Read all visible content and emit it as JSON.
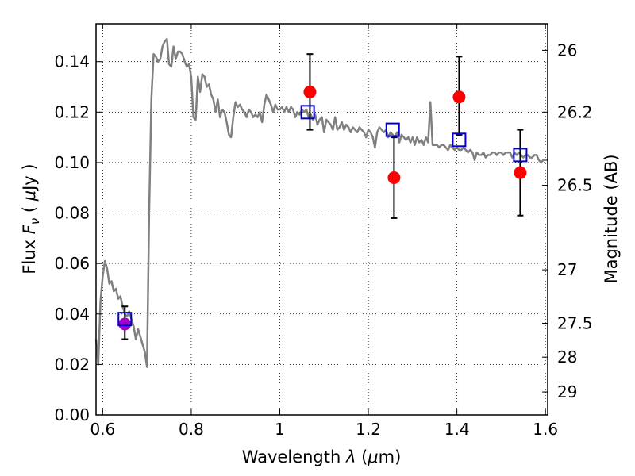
{
  "chart_data": {
    "type": "scatter",
    "xlabel_prefix": "Wavelength  ",
    "xlabel_symbol": "λ",
    "xlabel_open": " (",
    "xlabel_unit": "μ",
    "xlabel_close": "m)",
    "ylabel_prefix": "Flux  ",
    "ylabel_symbol": "F",
    "ylabel_sub": "ν",
    "ylabel_open": "  ( ",
    "ylabel_unit": "μ",
    "ylabel_close": "Jy )",
    "y2label": "Magnitude (AB)",
    "xlim": [
      0.585,
      1.605
    ],
    "ylim": [
      0.0,
      0.155
    ],
    "grid": true,
    "x_ticks": [
      0.6,
      0.8,
      1.0,
      1.2,
      1.4,
      1.6
    ],
    "x_tick_labels": [
      "0.6",
      "0.8",
      "1",
      "1.2",
      "1.4",
      "1.6"
    ],
    "y_ticks": [
      0.0,
      0.02,
      0.04,
      0.06,
      0.08,
      0.1,
      0.12,
      0.14
    ],
    "y_tick_labels": [
      "0.00",
      "0.02",
      "0.04",
      "0.06",
      "0.08",
      "0.10",
      "0.12",
      "0.14"
    ],
    "y2_ticks": [
      {
        "label": "26",
        "flux": 0.1445
      },
      {
        "label": "26.2",
        "flux": 0.12
      },
      {
        "label": "26.5",
        "flux": 0.091
      },
      {
        "label": "27",
        "flux": 0.0575
      },
      {
        "label": "27.5",
        "flux": 0.0363
      },
      {
        "label": "28",
        "flux": 0.0229
      },
      {
        "label": "29",
        "flux": 0.0091
      }
    ],
    "series": [
      {
        "kind": "line",
        "color": "#808080",
        "points": [
          [
            0.585,
            0.03
          ],
          [
            0.59,
            0.02
          ],
          [
            0.595,
            0.045
          ],
          [
            0.6,
            0.055
          ],
          [
            0.605,
            0.061
          ],
          [
            0.61,
            0.058
          ],
          [
            0.615,
            0.052
          ],
          [
            0.62,
            0.053
          ],
          [
            0.625,
            0.049
          ],
          [
            0.63,
            0.05
          ],
          [
            0.635,
            0.046
          ],
          [
            0.64,
            0.047
          ],
          [
            0.645,
            0.043
          ],
          [
            0.65,
            0.04
          ],
          [
            0.655,
            0.039
          ],
          [
            0.66,
            0.041
          ],
          [
            0.665,
            0.038
          ],
          [
            0.67,
            0.035
          ],
          [
            0.675,
            0.03
          ],
          [
            0.68,
            0.034
          ],
          [
            0.685,
            0.031
          ],
          [
            0.69,
            0.028
          ],
          [
            0.695,
            0.025
          ],
          [
            0.7,
            0.019
          ],
          [
            0.705,
            0.08
          ],
          [
            0.71,
            0.125
          ],
          [
            0.715,
            0.143
          ],
          [
            0.72,
            0.142
          ],
          [
            0.725,
            0.14
          ],
          [
            0.73,
            0.141
          ],
          [
            0.735,
            0.146
          ],
          [
            0.74,
            0.148
          ],
          [
            0.745,
            0.149
          ],
          [
            0.75,
            0.139
          ],
          [
            0.755,
            0.138
          ],
          [
            0.76,
            0.146
          ],
          [
            0.765,
            0.141
          ],
          [
            0.77,
            0.144
          ],
          [
            0.775,
            0.144
          ],
          [
            0.78,
            0.143
          ],
          [
            0.785,
            0.14
          ],
          [
            0.79,
            0.138
          ],
          [
            0.795,
            0.139
          ],
          [
            0.8,
            0.134
          ],
          [
            0.805,
            0.118
          ],
          [
            0.81,
            0.117
          ],
          [
            0.815,
            0.134
          ],
          [
            0.82,
            0.128
          ],
          [
            0.825,
            0.135
          ],
          [
            0.83,
            0.134
          ],
          [
            0.835,
            0.13
          ],
          [
            0.84,
            0.131
          ],
          [
            0.845,
            0.127
          ],
          [
            0.85,
            0.125
          ],
          [
            0.855,
            0.12
          ],
          [
            0.86,
            0.125
          ],
          [
            0.865,
            0.118
          ],
          [
            0.87,
            0.121
          ],
          [
            0.875,
            0.12
          ],
          [
            0.88,
            0.116
          ],
          [
            0.885,
            0.111
          ],
          [
            0.89,
            0.11
          ],
          [
            0.895,
            0.118
          ],
          [
            0.9,
            0.124
          ],
          [
            0.905,
            0.122
          ],
          [
            0.91,
            0.123
          ],
          [
            0.915,
            0.121
          ],
          [
            0.92,
            0.12
          ],
          [
            0.925,
            0.118
          ],
          [
            0.93,
            0.121
          ],
          [
            0.935,
            0.12
          ],
          [
            0.94,
            0.118
          ],
          [
            0.945,
            0.119
          ],
          [
            0.95,
            0.118
          ],
          [
            0.955,
            0.12
          ],
          [
            0.96,
            0.116
          ],
          [
            0.965,
            0.123
          ],
          [
            0.97,
            0.127
          ],
          [
            0.975,
            0.125
          ],
          [
            0.98,
            0.123
          ],
          [
            0.985,
            0.12
          ],
          [
            0.99,
            0.123
          ],
          [
            0.995,
            0.121
          ],
          [
            1.0,
            0.121
          ],
          [
            1.005,
            0.122
          ],
          [
            1.01,
            0.12
          ],
          [
            1.015,
            0.122
          ],
          [
            1.02,
            0.12
          ],
          [
            1.025,
            0.122
          ],
          [
            1.03,
            0.121
          ],
          [
            1.035,
            0.118
          ],
          [
            1.04,
            0.12
          ],
          [
            1.045,
            0.119
          ],
          [
            1.05,
            0.121
          ],
          [
            1.055,
            0.12
          ],
          [
            1.06,
            0.121
          ],
          [
            1.065,
            0.118
          ],
          [
            1.07,
            0.119
          ],
          [
            1.075,
            0.117
          ],
          [
            1.08,
            0.119
          ],
          [
            1.085,
            0.115
          ],
          [
            1.09,
            0.117
          ],
          [
            1.095,
            0.118
          ],
          [
            1.1,
            0.112
          ],
          [
            1.105,
            0.117
          ],
          [
            1.11,
            0.116
          ],
          [
            1.115,
            0.115
          ],
          [
            1.12,
            0.113
          ],
          [
            1.125,
            0.118
          ],
          [
            1.13,
            0.113
          ],
          [
            1.135,
            0.114
          ],
          [
            1.14,
            0.116
          ],
          [
            1.145,
            0.113
          ],
          [
            1.15,
            0.115
          ],
          [
            1.155,
            0.114
          ],
          [
            1.16,
            0.112
          ],
          [
            1.165,
            0.114
          ],
          [
            1.17,
            0.113
          ],
          [
            1.175,
            0.112
          ],
          [
            1.18,
            0.114
          ],
          [
            1.185,
            0.113
          ],
          [
            1.19,
            0.112
          ],
          [
            1.195,
            0.11
          ],
          [
            1.2,
            0.113
          ],
          [
            1.205,
            0.112
          ],
          [
            1.21,
            0.11
          ],
          [
            1.215,
            0.106
          ],
          [
            1.22,
            0.112
          ],
          [
            1.225,
            0.114
          ],
          [
            1.23,
            0.113
          ],
          [
            1.235,
            0.112
          ],
          [
            1.24,
            0.113
          ],
          [
            1.245,
            0.11
          ],
          [
            1.25,
            0.112
          ],
          [
            1.255,
            0.111
          ],
          [
            1.26,
            0.11
          ],
          [
            1.265,
            0.112
          ],
          [
            1.27,
            0.108
          ],
          [
            1.275,
            0.111
          ],
          [
            1.28,
            0.11
          ],
          [
            1.285,
            0.109
          ],
          [
            1.29,
            0.11
          ],
          [
            1.295,
            0.108
          ],
          [
            1.3,
            0.11
          ],
          [
            1.305,
            0.107
          ],
          [
            1.31,
            0.11
          ],
          [
            1.315,
            0.108
          ],
          [
            1.32,
            0.109
          ],
          [
            1.325,
            0.107
          ],
          [
            1.33,
            0.11
          ],
          [
            1.335,
            0.108
          ],
          [
            1.34,
            0.124
          ],
          [
            1.345,
            0.107
          ],
          [
            1.35,
            0.107
          ],
          [
            1.355,
            0.107
          ],
          [
            1.36,
            0.106
          ],
          [
            1.365,
            0.107
          ],
          [
            1.37,
            0.107
          ],
          [
            1.375,
            0.106
          ],
          [
            1.38,
            0.105
          ],
          [
            1.385,
            0.107
          ],
          [
            1.39,
            0.106
          ],
          [
            1.395,
            0.105
          ],
          [
            1.4,
            0.106
          ],
          [
            1.405,
            0.105
          ],
          [
            1.41,
            0.105
          ],
          [
            1.415,
            0.106
          ],
          [
            1.42,
            0.105
          ],
          [
            1.425,
            0.104
          ],
          [
            1.43,
            0.105
          ],
          [
            1.435,
            0.104
          ],
          [
            1.44,
            0.101
          ],
          [
            1.445,
            0.104
          ],
          [
            1.45,
            0.103
          ],
          [
            1.455,
            0.103
          ],
          [
            1.46,
            0.104
          ],
          [
            1.465,
            0.102
          ],
          [
            1.47,
            0.103
          ],
          [
            1.475,
            0.103
          ],
          [
            1.48,
            0.104
          ],
          [
            1.485,
            0.104
          ],
          [
            1.49,
            0.103
          ],
          [
            1.495,
            0.104
          ],
          [
            1.5,
            0.104
          ],
          [
            1.505,
            0.103
          ],
          [
            1.51,
            0.104
          ],
          [
            1.515,
            0.104
          ],
          [
            1.52,
            0.104
          ],
          [
            1.525,
            0.102
          ],
          [
            1.53,
            0.104
          ],
          [
            1.535,
            0.103
          ],
          [
            1.54,
            0.104
          ],
          [
            1.545,
            0.103
          ],
          [
            1.55,
            0.102
          ],
          [
            1.555,
            0.103
          ],
          [
            1.56,
            0.103
          ],
          [
            1.565,
            0.102
          ],
          [
            1.57,
            0.102
          ],
          [
            1.575,
            0.103
          ],
          [
            1.58,
            0.103
          ],
          [
            1.585,
            0.101
          ],
          [
            1.59,
            0.1
          ],
          [
            1.595,
            0.101
          ],
          [
            1.6,
            0.101
          ],
          [
            1.605,
            0.101
          ]
        ]
      },
      {
        "kind": "points-with-errorbars",
        "marker": "circle",
        "color": "#ff0000",
        "points": [
          {
            "x": 1.068,
            "y": 0.128,
            "ylo": 0.113,
            "yhi": 0.143
          },
          {
            "x": 1.258,
            "y": 0.094,
            "ylo": 0.078,
            "yhi": 0.11
          },
          {
            "x": 1.405,
            "y": 0.126,
            "ylo": 0.111,
            "yhi": 0.142
          },
          {
            "x": 1.543,
            "y": 0.096,
            "ylo": 0.079,
            "yhi": 0.113
          }
        ]
      },
      {
        "kind": "points-with-errorbars",
        "marker": "circle",
        "color": "#a000c8",
        "points": [
          {
            "x": 0.65,
            "y": 0.036,
            "ylo": 0.03,
            "yhi": 0.043
          }
        ]
      },
      {
        "kind": "points",
        "marker": "open-square",
        "color": "#0000cc",
        "points": [
          {
            "x": 0.65,
            "y": 0.038
          },
          {
            "x": 1.063,
            "y": 0.12
          },
          {
            "x": 1.255,
            "y": 0.113
          },
          {
            "x": 1.405,
            "y": 0.109
          },
          {
            "x": 1.543,
            "y": 0.103
          }
        ]
      }
    ]
  }
}
